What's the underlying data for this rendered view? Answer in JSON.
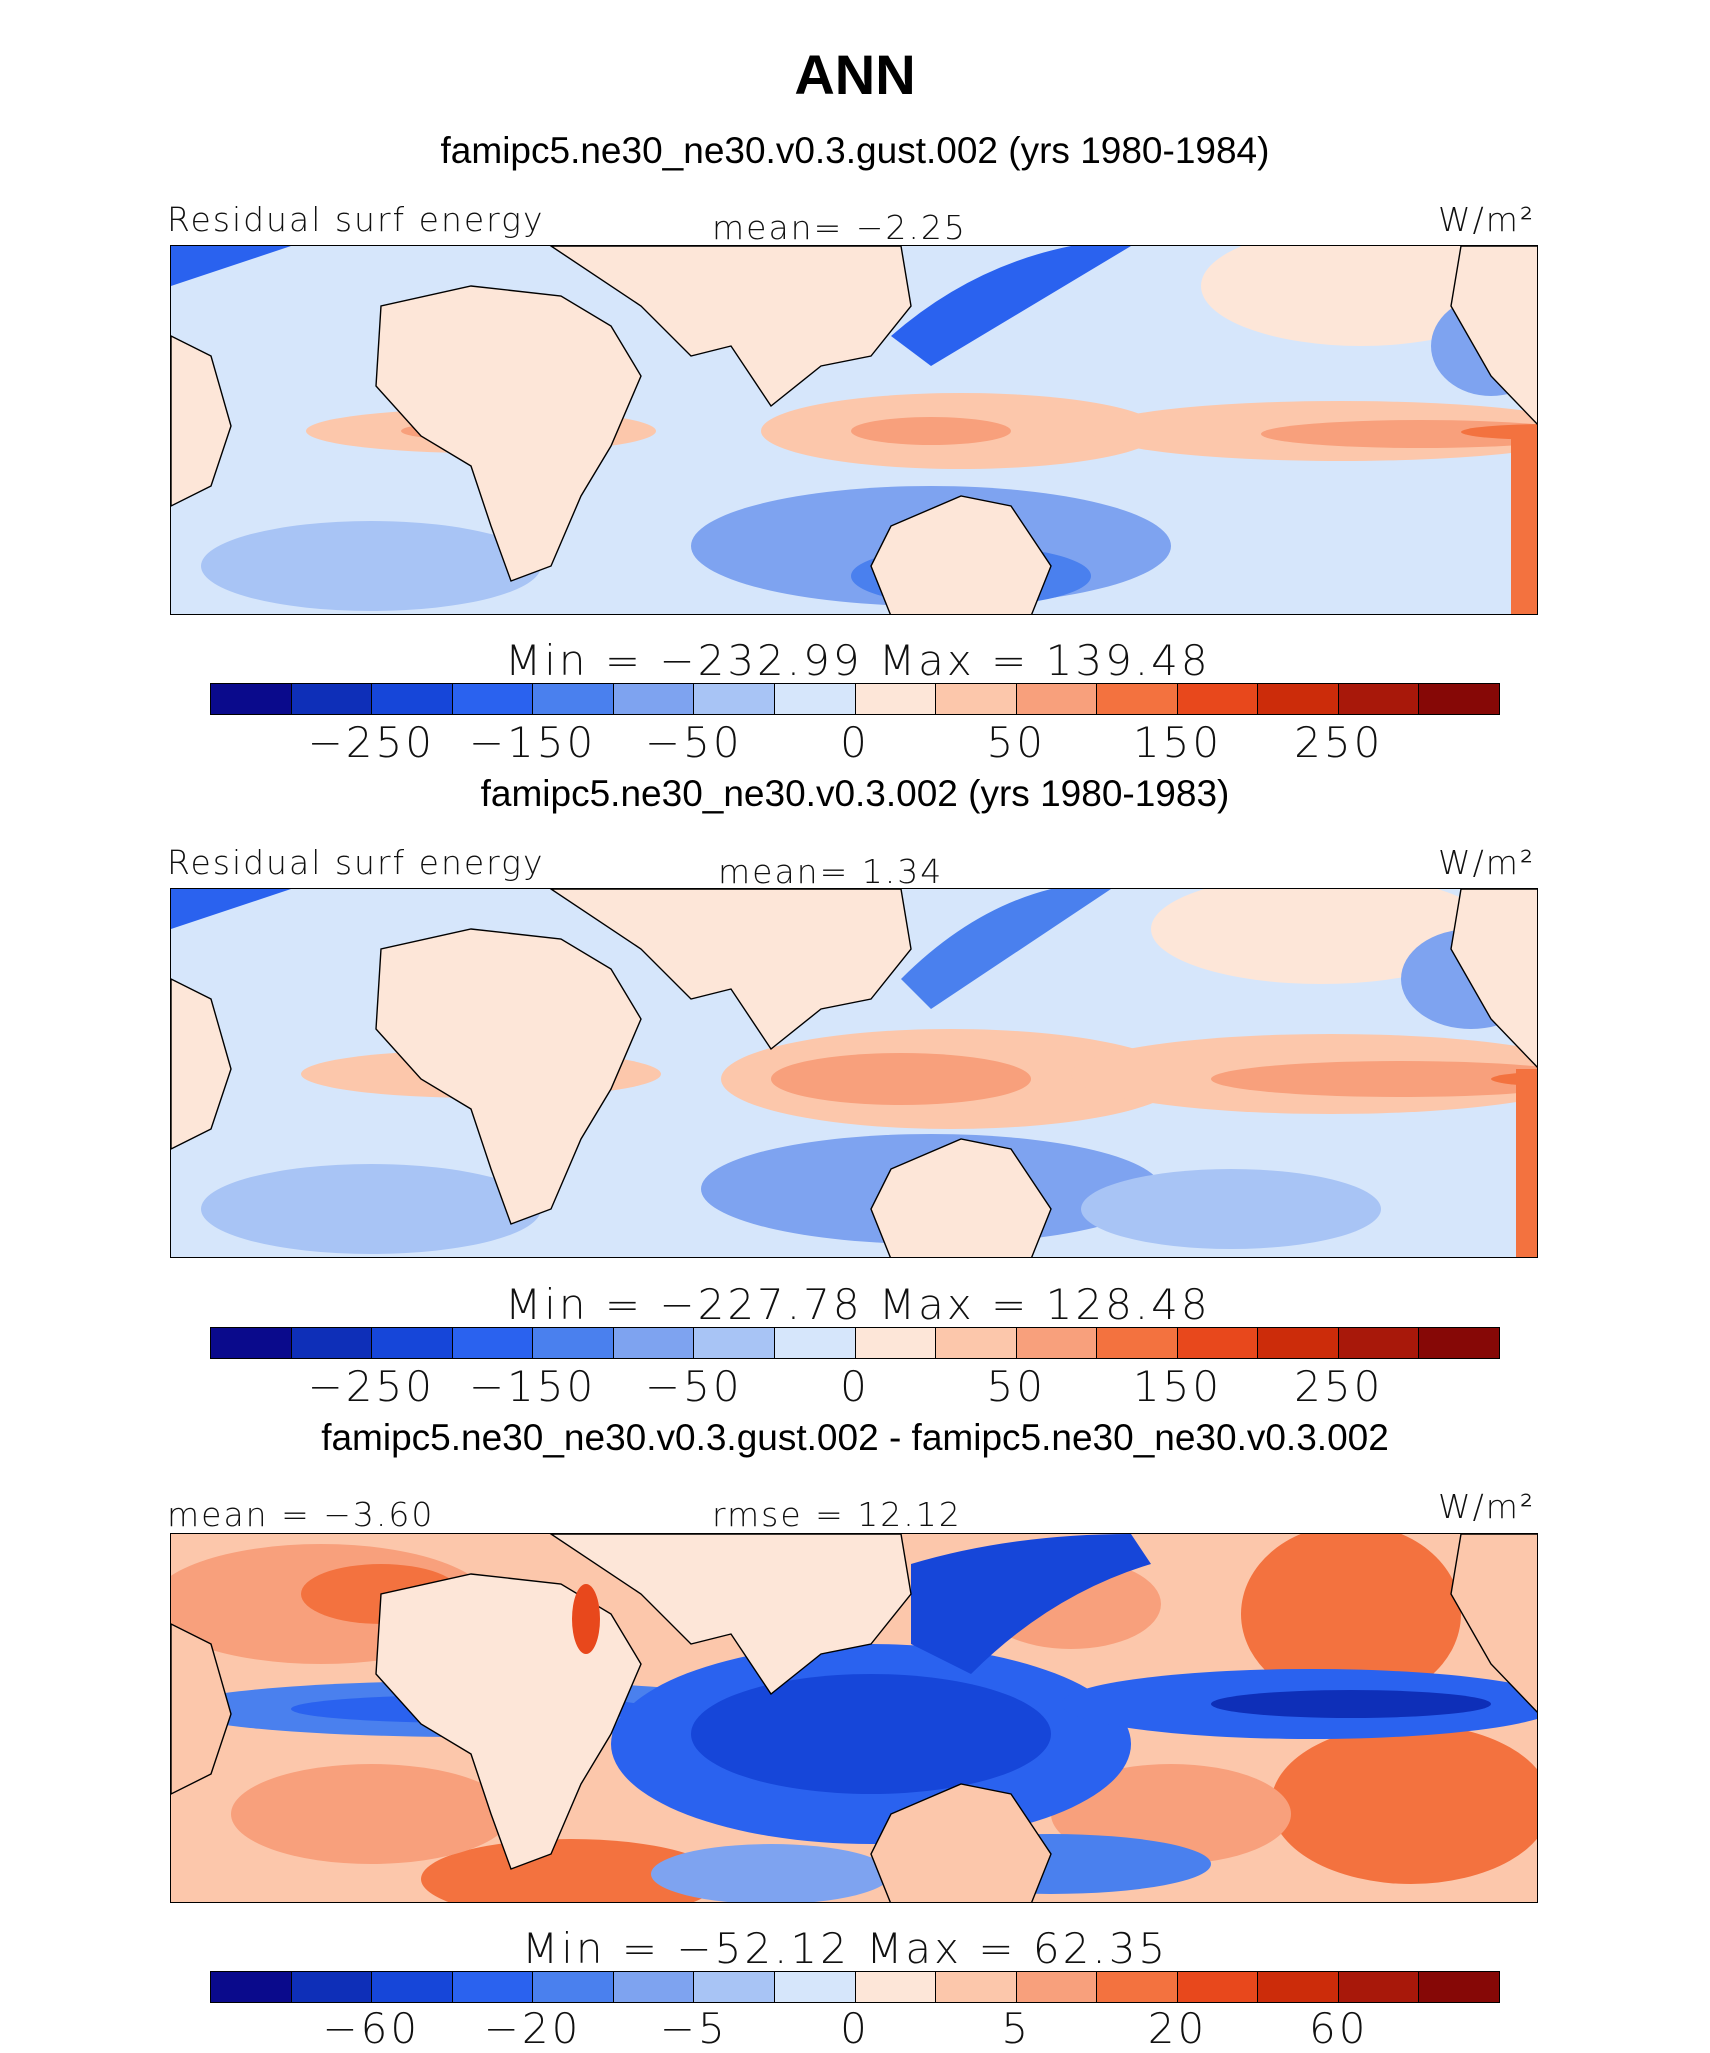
{
  "figure_title": "ANN",
  "colors": {
    "scale": [
      "#0a0a8c",
      "#0e2fb8",
      "#1646d9",
      "#2a62ef",
      "#4a80ee",
      "#7ea3f0",
      "#a8c4f5",
      "#d6e6fb",
      "#fde6d8",
      "#fcc7ab",
      "#f8a07c",
      "#f3723f",
      "#e8481c",
      "#cc2c0a",
      "#a8180a",
      "#860806"
    ],
    "land": "#fde6d8",
    "coast": "#000000"
  },
  "chart_data": [
    {
      "type": "heatmap",
      "case_title": "famipc5.ne30_ne30.v0.3.gust.002 (yrs 1980-1984)",
      "left_label": "Residual surf energy",
      "center_label": "mean=  −2.25",
      "units": "W/m²",
      "min_max": "Min = −232.99 Max = 139.48",
      "min": -232.99,
      "max": 139.48,
      "mean": -2.25,
      "colorbar_levels": [
        -350,
        -300,
        -250,
        -200,
        -150,
        -100,
        -50,
        -25,
        0,
        25,
        50,
        100,
        150,
        200,
        250,
        300,
        350
      ],
      "colorbar_tick_labels": [
        "−250",
        "−150",
        "−50",
        "0",
        "50",
        "150",
        "250"
      ]
    },
    {
      "type": "heatmap",
      "case_title": "famipc5.ne30_ne30.v0.3.002 (yrs 1980-1983)",
      "left_label": "Residual surf energy",
      "center_label": "mean=   1.34",
      "units": "W/m²",
      "min_max": "Min = −227.78 Max = 128.48",
      "min": -227.78,
      "max": 128.48,
      "mean": 1.34,
      "colorbar_levels": [
        -350,
        -300,
        -250,
        -200,
        -150,
        -100,
        -50,
        -25,
        0,
        25,
        50,
        100,
        150,
        200,
        250,
        300,
        350
      ],
      "colorbar_tick_labels": [
        "−250",
        "−150",
        "−50",
        "0",
        "50",
        "150",
        "250"
      ]
    },
    {
      "type": "heatmap",
      "case_title": "famipc5.ne30_ne30.v0.3.gust.002 - famipc5.ne30_ne30.v0.3.002",
      "left_label": "mean = −3.60",
      "center_label": "rmse =  12.12",
      "units": "W/m²",
      "min_max": "Min = −52.12 Max =  62.35",
      "min": -52.12,
      "max": 62.35,
      "mean": -3.6,
      "rmse": 12.12,
      "colorbar_levels": [
        -80,
        -70,
        -60,
        -40,
        -20,
        -10,
        -5,
        -2,
        0,
        2,
        5,
        10,
        20,
        40,
        60,
        70,
        80
      ],
      "colorbar_tick_labels": [
        "−60",
        "−20",
        "−5",
        "0",
        "5",
        "20",
        "60"
      ]
    }
  ]
}
